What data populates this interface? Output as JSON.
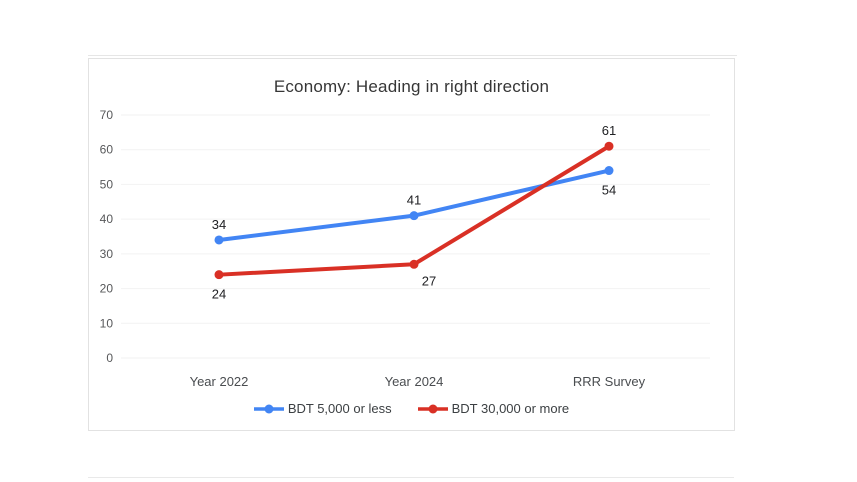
{
  "chart_data": {
    "type": "line",
    "title": "Economy: Heading in right direction",
    "categories": [
      "Year 2022",
      "Year 2024",
      "RRR Survey"
    ],
    "series": [
      {
        "name": "BDT 5,000 or less",
        "color": "#4285f4",
        "values": [
          34,
          41,
          54
        ],
        "label_positions": [
          "above",
          "above",
          "below"
        ]
      },
      {
        "name": "BDT 30,000 or more",
        "color": "#d93025",
        "values": [
          24,
          27,
          61
        ],
        "label_positions": [
          "below",
          "below-right",
          "above"
        ]
      }
    ],
    "ylim": [
      0,
      70
    ],
    "y_ticks": [
      0,
      10,
      20,
      30,
      40,
      50,
      60,
      70
    ],
    "grid": true,
    "legend_position": "bottom",
    "colors": {
      "grid_line": "#f2f2f2",
      "tick_label": "#57585a",
      "category_label": "#4a4d50",
      "data_label": "#202124",
      "title": "#363636"
    }
  }
}
